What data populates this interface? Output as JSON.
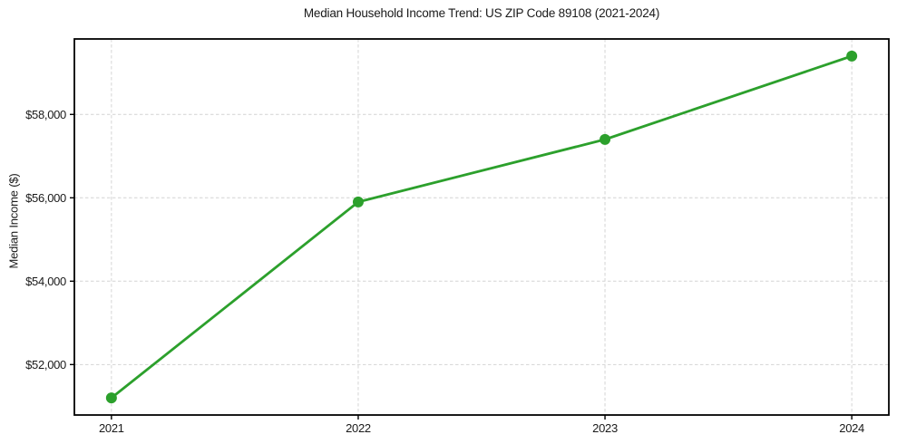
{
  "chart_data": {
    "type": "line",
    "title": "Median Household Income Trend: US ZIP Code 89108 (2021-2024)",
    "xlabel": "",
    "ylabel": "Median Income ($)",
    "categories": [
      "2021",
      "2022",
      "2023",
      "2024"
    ],
    "values": [
      51200,
      55900,
      57400,
      59400
    ],
    "yticks": [
      {
        "value": 52000,
        "label": "$52,000"
      },
      {
        "value": 54000,
        "label": "$54,000"
      },
      {
        "value": 56000,
        "label": "$56,000"
      },
      {
        "value": 58000,
        "label": "$58,000"
      }
    ],
    "ylim": [
      50790,
      59810
    ],
    "grid": true,
    "legend_position": "none",
    "line_color": "#2ca02c",
    "marker": "circle",
    "grid_color": "#d4d4d4",
    "axis_color": "#000000",
    "text_color": "#1a1a1a",
    "background_color": "#ffffff"
  }
}
